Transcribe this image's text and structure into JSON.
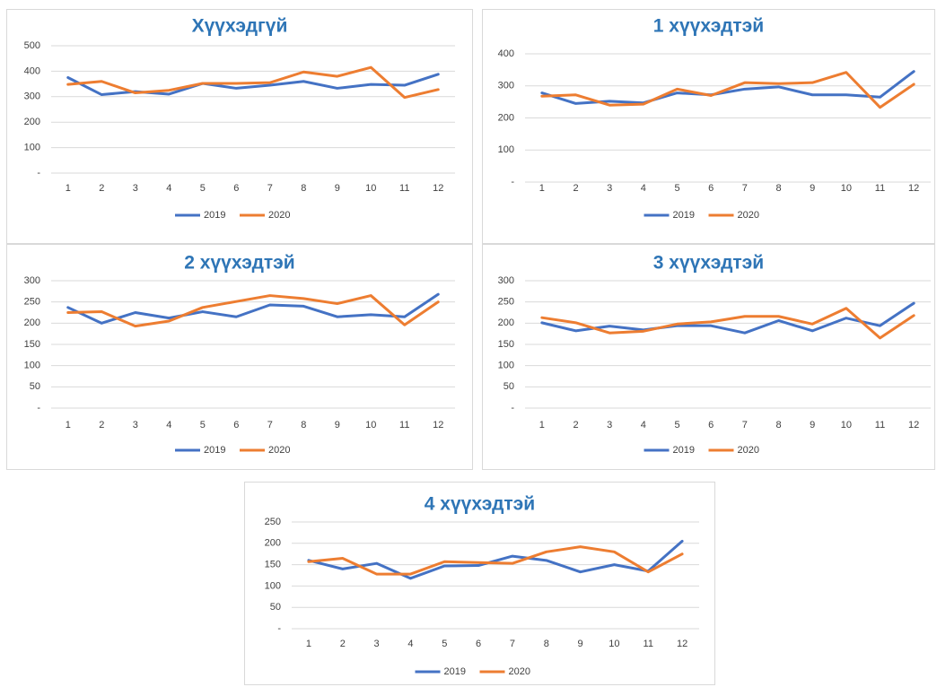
{
  "chart_data": [
    {
      "type": "line",
      "title": "Хүүхэдгүй",
      "categories": [
        "1",
        "2",
        "3",
        "4",
        "5",
        "6",
        "7",
        "8",
        "9",
        "10",
        "11",
        "12"
      ],
      "series": [
        {
          "name": "2019",
          "color": "#4472c4",
          "values": [
            375,
            308,
            320,
            310,
            352,
            333,
            345,
            360,
            333,
            348,
            345,
            388
          ]
        },
        {
          "name": "2020",
          "color": "#ed7d31",
          "values": [
            348,
            360,
            315,
            325,
            352,
            352,
            355,
            397,
            380,
            415,
            297,
            328
          ]
        }
      ],
      "ylim": [
        0,
        500
      ],
      "yticks": [
        {
          "value": 0,
          "label": "-"
        },
        100,
        200,
        300,
        400,
        500
      ],
      "grid": true,
      "legend": "bottom"
    },
    {
      "type": "line",
      "title": "1 хүүхэдтэй",
      "categories": [
        "1",
        "2",
        "3",
        "4",
        "5",
        "6",
        "7",
        "8",
        "9",
        "10",
        "11",
        "12"
      ],
      "series": [
        {
          "name": "2019",
          "color": "#4472c4",
          "values": [
            278,
            245,
            252,
            247,
            278,
            272,
            290,
            297,
            272,
            272,
            265,
            345
          ]
        },
        {
          "name": "2020",
          "color": "#ed7d31",
          "values": [
            268,
            272,
            240,
            243,
            290,
            270,
            310,
            307,
            310,
            342,
            233,
            305
          ]
        }
      ],
      "ylim": [
        0,
        400
      ],
      "yticks": [
        {
          "value": 0,
          "label": "-"
        },
        100,
        200,
        300,
        400
      ],
      "grid": true,
      "legend": "bottom"
    },
    {
      "type": "line",
      "title": "2 хүүхэдтэй",
      "categories": [
        "1",
        "2",
        "3",
        "4",
        "5",
        "6",
        "7",
        "8",
        "9",
        "10",
        "11",
        "12"
      ],
      "series": [
        {
          "name": "2019",
          "color": "#4472c4",
          "values": [
            237,
            200,
            225,
            212,
            227,
            215,
            243,
            240,
            215,
            220,
            215,
            268
          ]
        },
        {
          "name": "2020",
          "color": "#ed7d31",
          "values": [
            225,
            227,
            193,
            205,
            237,
            251,
            265,
            258,
            246,
            265,
            196,
            250
          ]
        }
      ],
      "ylim": [
        0,
        300
      ],
      "yticks": [
        {
          "value": 0,
          "label": "-"
        },
        50,
        100,
        150,
        200,
        250,
        300
      ],
      "grid": true,
      "legend": "bottom"
    },
    {
      "type": "line",
      "title": "3 хүүхэдтэй",
      "categories": [
        "1",
        "2",
        "3",
        "4",
        "5",
        "6",
        "7",
        "8",
        "9",
        "10",
        "11",
        "12"
      ],
      "series": [
        {
          "name": "2019",
          "color": "#4472c4",
          "values": [
            201,
            182,
            193,
            184,
            194,
            194,
            177,
            206,
            182,
            212,
            194,
            247
          ]
        },
        {
          "name": "2020",
          "color": "#ed7d31",
          "values": [
            213,
            201,
            177,
            181,
            198,
            203,
            216,
            216,
            198,
            235,
            165,
            218
          ]
        }
      ],
      "ylim": [
        0,
        300
      ],
      "yticks": [
        {
          "value": 0,
          "label": "-"
        },
        50,
        100,
        150,
        200,
        250,
        300
      ],
      "grid": true,
      "legend": "bottom"
    },
    {
      "type": "line",
      "title": "4 хүүхэдтэй",
      "categories": [
        "1",
        "2",
        "3",
        "4",
        "5",
        "6",
        "7",
        "8",
        "9",
        "10",
        "11",
        "12"
      ],
      "series": [
        {
          "name": "2019",
          "color": "#4472c4",
          "values": [
            160,
            140,
            153,
            118,
            147,
            148,
            170,
            160,
            133,
            150,
            135,
            205
          ]
        },
        {
          "name": "2020",
          "color": "#ed7d31",
          "values": [
            157,
            165,
            128,
            128,
            157,
            155,
            153,
            180,
            192,
            180,
            133,
            175
          ]
        }
      ],
      "ylim": [
        0,
        250
      ],
      "yticks": [
        {
          "value": 0,
          "label": "-"
        },
        50,
        100,
        150,
        200,
        250
      ],
      "grid": true,
      "legend": "bottom"
    }
  ]
}
